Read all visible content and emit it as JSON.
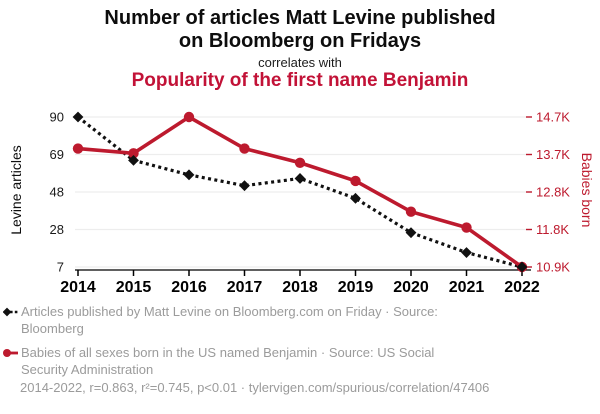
{
  "header": {
    "title_line1": "Number of articles Matt Levine published",
    "title_line2": "on Bloomberg on Fridays",
    "connector": "correlates with",
    "subtitle": "Popularity of the first name Benjamin"
  },
  "colors": {
    "accent_red": "#c21237",
    "line_red": "#bd1a2e",
    "line_black": "#111111",
    "grid": "#ededed",
    "axis": "#000000",
    "tick_text": "#1a1a1a",
    "muted_text": "#9b9b9b"
  },
  "chart_data": {
    "type": "line",
    "title": "Number of articles Matt Levine published on Bloomberg on Fridays correlates with Popularity of the first name Benjamin",
    "categories": [
      "2014",
      "2015",
      "2016",
      "2017",
      "2018",
      "2019",
      "2020",
      "2021",
      "2022"
    ],
    "series": [
      {
        "name": "Articles published by Matt Levine on Bloomberg.com on Friday",
        "axis": "left",
        "color": "#111111",
        "style": "dashed",
        "marker": "diamond",
        "values": [
          90,
          66,
          58,
          52,
          56,
          45,
          26,
          15,
          7
        ]
      },
      {
        "name": "Babies of all sexes born in the US named Benjamin",
        "axis": "right",
        "color": "#bd1a2e",
        "style": "solid",
        "marker": "circle",
        "values": [
          13900,
          13780,
          14700,
          13900,
          13540,
          13080,
          12300,
          11900,
          10900
        ]
      }
    ],
    "left_axis": {
      "label": "Levine articles",
      "ticks": [
        "90",
        "69",
        "48",
        "28",
        "7"
      ],
      "min": 7,
      "max": 90
    },
    "right_axis": {
      "label": "Babies born",
      "ticks": [
        "14.7K",
        "13.7K",
        "12.8K",
        "11.8K",
        "10.9K"
      ],
      "min": 10900,
      "max": 14700
    },
    "grid": true,
    "legend_position": "bottom"
  },
  "legend": {
    "items": [
      {
        "label": "Articles published by Matt Levine on Bloomberg.com on Friday · Source: Bloomberg"
      },
      {
        "label": "Babies of all sexes born in the US named Benjamin · Source: US Social Security Administration"
      }
    ]
  },
  "footer": {
    "text": "2014-2022, r=0.863, r²=0.745, p<0.01 · tylervigen.com/spurious/correlation/47406"
  }
}
